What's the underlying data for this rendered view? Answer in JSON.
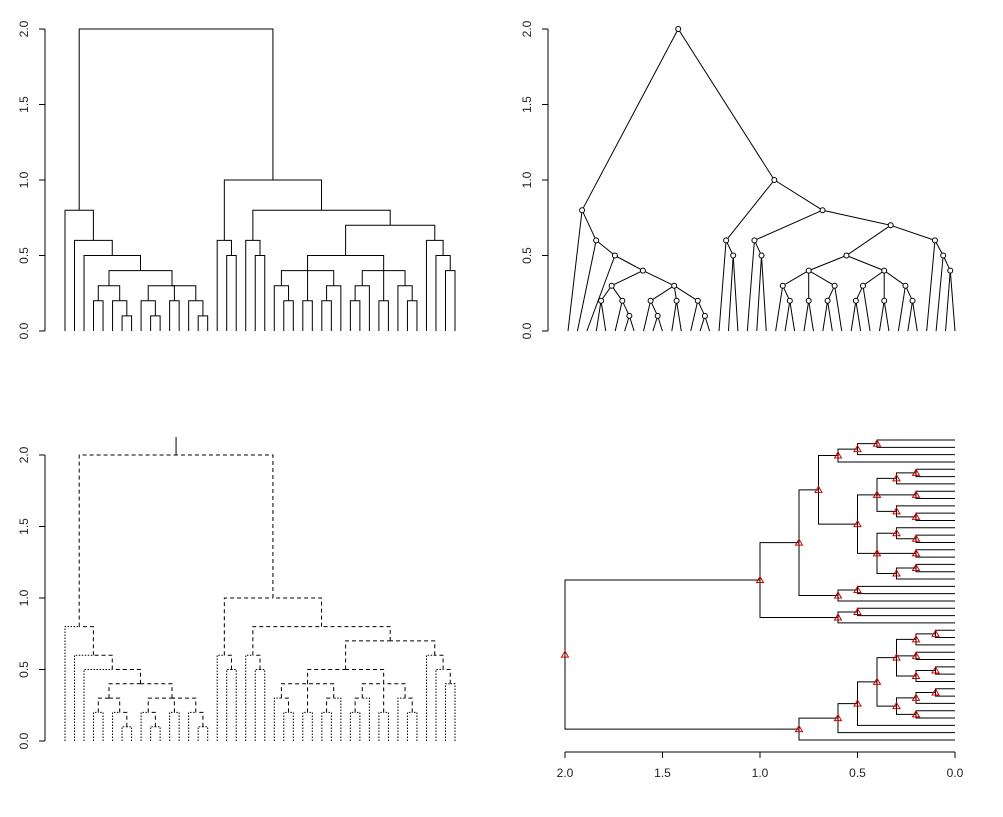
{
  "tree": {
    "height": 2,
    "children": [
      {
        "height": 0.8,
        "children": [
          {
            "height": 0
          },
          {
            "height": 0.6,
            "children": [
              {
                "height": 0
              },
              {
                "height": 0.5,
                "children": [
                  {
                    "height": 0
                  },
                  {
                    "height": 0.4,
                    "children": [
                      {
                        "height": 0.3,
                        "children": [
                          {
                            "height": 0.2,
                            "children": [
                              {
                                "height": 0
                              },
                              {
                                "height": 0
                              }
                            ]
                          },
                          {
                            "height": 0.2,
                            "children": [
                              {
                                "height": 0
                              },
                              {
                                "height": 0.1,
                                "children": [
                                  {
                                    "height": 0
                                  },
                                  {
                                    "height": 0
                                  }
                                ]
                              }
                            ]
                          }
                        ]
                      },
                      {
                        "height": 0.3,
                        "children": [
                          {
                            "height": 0.2,
                            "children": [
                              {
                                "height": 0
                              },
                              {
                                "height": 0.1,
                                "children": [
                                  {
                                    "height": 0
                                  },
                                  {
                                    "height": 0
                                  }
                                ]
                              }
                            ]
                          },
                          {
                            "height": 0.2,
                            "children": [
                              {
                                "height": 0
                              },
                              {
                                "height": 0
                              }
                            ]
                          },
                          {
                            "height": 0.2,
                            "children": [
                              {
                                "height": 0
                              },
                              {
                                "height": 0.1,
                                "children": [
                                  {
                                    "height": 0
                                  },
                                  {
                                    "height": 0
                                  }
                                ]
                              }
                            ]
                          }
                        ]
                      }
                    ]
                  }
                ]
              }
            ]
          }
        ]
      },
      {
        "height": 1,
        "children": [
          {
            "height": 0.6,
            "children": [
              {
                "height": 0
              },
              {
                "height": 0.5,
                "children": [
                  {
                    "height": 0
                  },
                  {
                    "height": 0
                  }
                ]
              }
            ]
          },
          {
            "height": 0.8,
            "children": [
              {
                "height": 0.6,
                "children": [
                  {
                    "height": 0
                  },
                  {
                    "height": 0.5,
                    "children": [
                      {
                        "height": 0
                      },
                      {
                        "height": 0
                      }
                    ]
                  }
                ]
              },
              {
                "height": 0.7,
                "children": [
                  {
                    "height": 0.5,
                    "children": [
                      {
                        "height": 0.4,
                        "children": [
                          {
                            "height": 0.3,
                            "children": [
                              {
                                "height": 0
                              },
                              {
                                "height": 0.2,
                                "children": [
                                  {
                                    "height": 0
                                  },
                                  {
                                    "height": 0
                                  }
                                ]
                              }
                            ]
                          },
                          {
                            "height": 0.2,
                            "children": [
                              {
                                "height": 0
                              },
                              {
                                "height": 0
                              }
                            ]
                          },
                          {
                            "height": 0.3,
                            "children": [
                              {
                                "height": 0.2,
                                "children": [
                                  {
                                    "height": 0
                                  },
                                  {
                                    "height": 0
                                  }
                                ]
                              },
                              {
                                "height": 0
                              }
                            ]
                          }
                        ]
                      },
                      {
                        "height": 0.4,
                        "children": [
                          {
                            "height": 0.3,
                            "children": [
                              {
                                "height": 0.2,
                                "children": [
                                  {
                                    "height": 0
                                  },
                                  {
                                    "height": 0
                                  }
                                ]
                              },
                              {
                                "height": 0
                              }
                            ]
                          },
                          {
                            "height": 0.2,
                            "children": [
                              {
                                "height": 0
                              },
                              {
                                "height": 0
                              }
                            ]
                          },
                          {
                            "height": 0.3,
                            "children": [
                              {
                                "height": 0
                              },
                              {
                                "height": 0.2,
                                "children": [
                                  {
                                    "height": 0
                                  },
                                  {
                                    "height": 0
                                  }
                                ]
                              }
                            ]
                          }
                        ]
                      }
                    ]
                  },
                  {
                    "height": 0.6,
                    "children": [
                      {
                        "height": 0
                      },
                      {
                        "height": 0.5,
                        "children": [
                          {
                            "height": 0
                          },
                          {
                            "height": 0.4,
                            "children": [
                              {
                                "height": 0
                              },
                              {
                                "height": 0
                              }
                            ]
                          }
                        ]
                      }
                    ]
                  }
                ]
              }
            ]
          }
        ]
      }
    ]
  },
  "chart_data": [
    {
      "type": "rectangle",
      "ylim": [
        0,
        2
      ],
      "yticks": [
        {
          "value": 0,
          "label": "0.0"
        },
        0.5,
        {
          "value": 1,
          "label": "1.0"
        },
        1.5,
        {
          "value": 2,
          "label": "2.0"
        }
      ]
    },
    {
      "type": "triangle",
      "node_marker": "circle",
      "ylim": [
        0,
        2
      ],
      "yticks": [
        {
          "value": 0,
          "label": "0.0"
        },
        0.5,
        {
          "value": 1,
          "label": "1.0"
        },
        1.5,
        {
          "value": 2,
          "label": "2.0"
        }
      ]
    },
    {
      "type": "rectangle",
      "edge_style": "dashed",
      "leaf_edge_color": "#e00000",
      "root_edge": true,
      "ylim": [
        0,
        2
      ],
      "yticks": [
        {
          "value": 0,
          "label": "0.0"
        },
        0.5,
        {
          "value": 1,
          "label": "1.0"
        },
        1.5,
        {
          "value": 2,
          "label": "2.0"
        }
      ]
    },
    {
      "type": "rectangle",
      "orientation": "horizontal",
      "node_marker": "triangle",
      "marker_color": "#cc0000",
      "xlim": [
        2,
        0
      ],
      "xticks": [
        {
          "value": 2,
          "label": "2.0"
        },
        1.5,
        {
          "value": 1,
          "label": "1.0"
        },
        0.5,
        {
          "value": 0,
          "label": "0.0"
        }
      ]
    }
  ]
}
